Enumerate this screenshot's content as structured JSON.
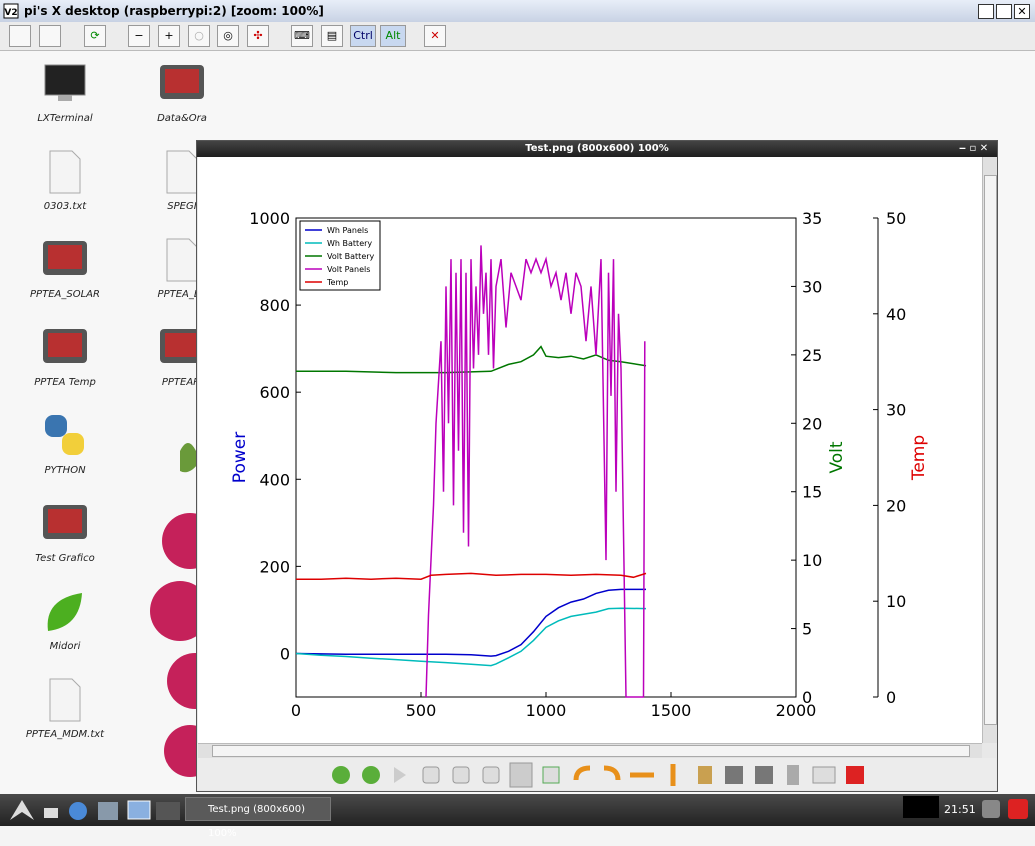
{
  "vnc_window": {
    "title": "pi's X desktop (raspberrypi:2) [zoom: 100%]",
    "toolbar": [
      "Ctrl",
      "Alt"
    ]
  },
  "desktop_icons": [
    "LXTerminal",
    "Data&Ora",
    "0303.txt",
    "SPEGI",
    "PPTEA_SOLAR",
    "PPTEA_LC",
    "PPTEA Temp",
    "PPTEAPI",
    "PYTHON",
    "Test Grafico",
    "Midori",
    "PPTEA_MDM.txt"
  ],
  "viewer": {
    "title": "Test.png (800x600) 100%"
  },
  "chart_data": {
    "type": "line",
    "xlabel": null,
    "ylabel": "Power",
    "y2label": "Volt",
    "y3label": "Temp",
    "xlim": [
      0,
      2000
    ],
    "xticks": [
      0,
      500,
      1000,
      1500,
      2000
    ],
    "ylim": [
      -100,
      1000
    ],
    "yticks": [
      0,
      200,
      400,
      600,
      800,
      1000
    ],
    "y2lim": [
      0,
      35
    ],
    "y2ticks": [
      0,
      5,
      10,
      15,
      20,
      25,
      30,
      35
    ],
    "y3lim": [
      0,
      50
    ],
    "y3ticks": [
      0,
      10,
      20,
      30,
      40,
      50
    ],
    "legend": "upper left",
    "series": [
      {
        "name": "Wh Panels",
        "color": "#0000cc",
        "axis": "y",
        "x": [
          0,
          100,
          200,
          300,
          400,
          500,
          600,
          700,
          780,
          800,
          850,
          900,
          950,
          1000,
          1050,
          1100,
          1150,
          1200,
          1250,
          1300,
          1400
        ],
        "values": [
          0,
          -1,
          -2,
          -2,
          -2,
          -2,
          -2,
          -3,
          -6,
          -5,
          5,
          20,
          50,
          85,
          105,
          118,
          125,
          138,
          145,
          147,
          147
        ]
      },
      {
        "name": "Wh Battery",
        "color": "#00bbbb",
        "axis": "y",
        "x": [
          0,
          100,
          200,
          300,
          400,
          500,
          600,
          700,
          780,
          800,
          850,
          900,
          950,
          1000,
          1050,
          1100,
          1150,
          1200,
          1250,
          1300,
          1400
        ],
        "values": [
          0,
          -4,
          -7,
          -11,
          -14,
          -18,
          -21,
          -25,
          -28,
          -24,
          -10,
          5,
          30,
          60,
          75,
          85,
          90,
          95,
          103,
          104,
          103
        ]
      },
      {
        "name": "Volt Battery",
        "color": "#007700",
        "axis": "y2",
        "x": [
          0,
          200,
          400,
          600,
          780,
          850,
          900,
          950,
          980,
          1000,
          1050,
          1100,
          1150,
          1200,
          1250,
          1300,
          1400
        ],
        "values": [
          23.8,
          23.8,
          23.7,
          23.7,
          23.8,
          24.3,
          24.5,
          25,
          25.6,
          24.9,
          24.8,
          24.9,
          24.7,
          25,
          24.6,
          24.5,
          24.2
        ]
      },
      {
        "name": "Volt Panels",
        "color": "#bb00bb",
        "axis": "y2",
        "x": [
          520,
          530,
          540,
          550,
          560,
          570,
          580,
          590,
          600,
          610,
          620,
          630,
          640,
          650,
          660,
          670,
          680,
          690,
          700,
          710,
          720,
          730,
          740,
          750,
          760,
          770,
          780,
          790,
          800,
          820,
          840,
          860,
          880,
          900,
          920,
          940,
          960,
          980,
          1000,
          1020,
          1040,
          1060,
          1080,
          1100,
          1120,
          1140,
          1160,
          1180,
          1200,
          1220,
          1240,
          1250,
          1260,
          1270,
          1280,
          1290,
          1300,
          1310,
          1320,
          1330,
          1390,
          1395
        ],
        "values": [
          0,
          6,
          10,
          14,
          20,
          23,
          26,
          15,
          30,
          20,
          32,
          14,
          31,
          18,
          32,
          12,
          31,
          11,
          32,
          24,
          30,
          25,
          33,
          28,
          31,
          25,
          32,
          24,
          30,
          32,
          27,
          31,
          30,
          29,
          32,
          31,
          32,
          31,
          32,
          30,
          31,
          29,
          31,
          28,
          31,
          30,
          26,
          30,
          25,
          32,
          10,
          31,
          22,
          32,
          15,
          28,
          24,
          12,
          0,
          0,
          0,
          26
        ]
      },
      {
        "name": "Temp",
        "color": "#dd0000",
        "axis": "y3",
        "x": [
          0,
          100,
          200,
          300,
          400,
          500,
          540,
          600,
          700,
          800,
          900,
          1000,
          1100,
          1200,
          1300,
          1350,
          1400
        ],
        "values": [
          12.3,
          12.3,
          12.4,
          12.3,
          12.4,
          12.3,
          12.7,
          12.8,
          12.9,
          12.7,
          12.8,
          12.8,
          12.7,
          12.8,
          12.7,
          12.5,
          12.9
        ]
      }
    ]
  },
  "taskbar": {
    "task": "Test.png (800x600) 100%",
    "clock": "21:51"
  }
}
